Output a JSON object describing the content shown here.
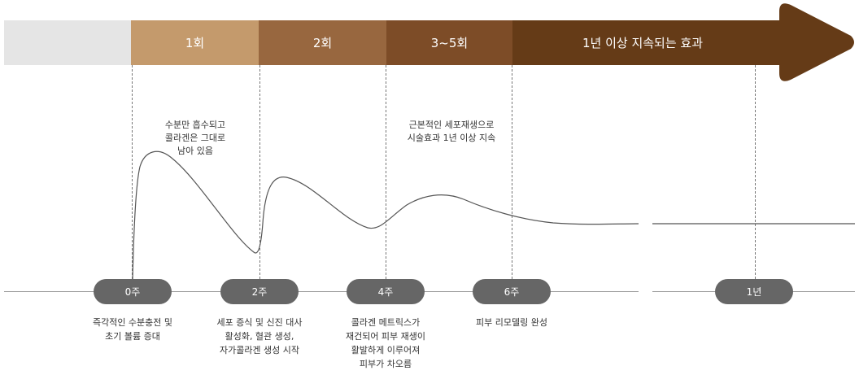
{
  "header": {
    "segments": [
      {
        "label": "",
        "color": "#e5e5e5"
      },
      {
        "label": "1회",
        "color": "#c49a6c"
      },
      {
        "label": "2회",
        "color": "#98673f"
      },
      {
        "label": "3~5회",
        "color": "#7d4c27"
      },
      {
        "label": "1년 이상 지속되는 효과",
        "color": "#653b17"
      }
    ]
  },
  "notes": {
    "note1": "수분만 흡수되고\n콜라겐은 그대로\n남아 있음",
    "note2": "근본적인 세포재생으로\n시술효과 1년 이상 지속"
  },
  "timeline": {
    "pills": [
      "0주",
      "2주",
      "4주",
      "6주",
      "1년"
    ],
    "captions": [
      "즉각적인 수분충전 및\n초기 볼륨 증대",
      "세포 증식 및 신진 대사\n활성화, 혈관 생성,\n자가콜라겐 생성 시작",
      "콜라겐 메트릭스가\n재건되어 피부 재생이\n활발하게 이루어져\n피부가 차오름",
      "피부 리모델링 완성",
      ""
    ]
  },
  "colors": {
    "pill": "#666666",
    "curve": "#555555",
    "line": "#999999"
  }
}
